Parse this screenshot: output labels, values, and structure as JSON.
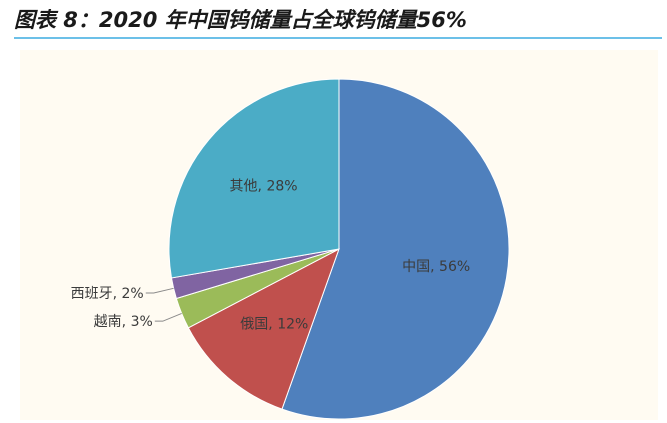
{
  "title": "图表 8：2020 年中国钨储量占全球钨储量56%",
  "colors": {
    "中国": "#4f80bd",
    "俄国": "#c0504d",
    "越南": "#9bbb59",
    "西班牙": "#8064a2",
    "其他": "#4bacc6"
  },
  "chart_data": {
    "type": "pie",
    "title": "2020 年中国钨储量占全球钨储量56%",
    "slices": [
      {
        "name": "中国",
        "value": 56,
        "label": "中国, 56%"
      },
      {
        "name": "俄国",
        "value": 12,
        "label": "俄国, 12%"
      },
      {
        "name": "越南",
        "value": 3,
        "label": "越南, 3%"
      },
      {
        "name": "西班牙",
        "value": 2,
        "label": "西班牙, 2%"
      },
      {
        "name": "其他",
        "value": 28,
        "label": "其他, 28%"
      }
    ],
    "start": "12 o'clock",
    "direction": "clockwise"
  }
}
